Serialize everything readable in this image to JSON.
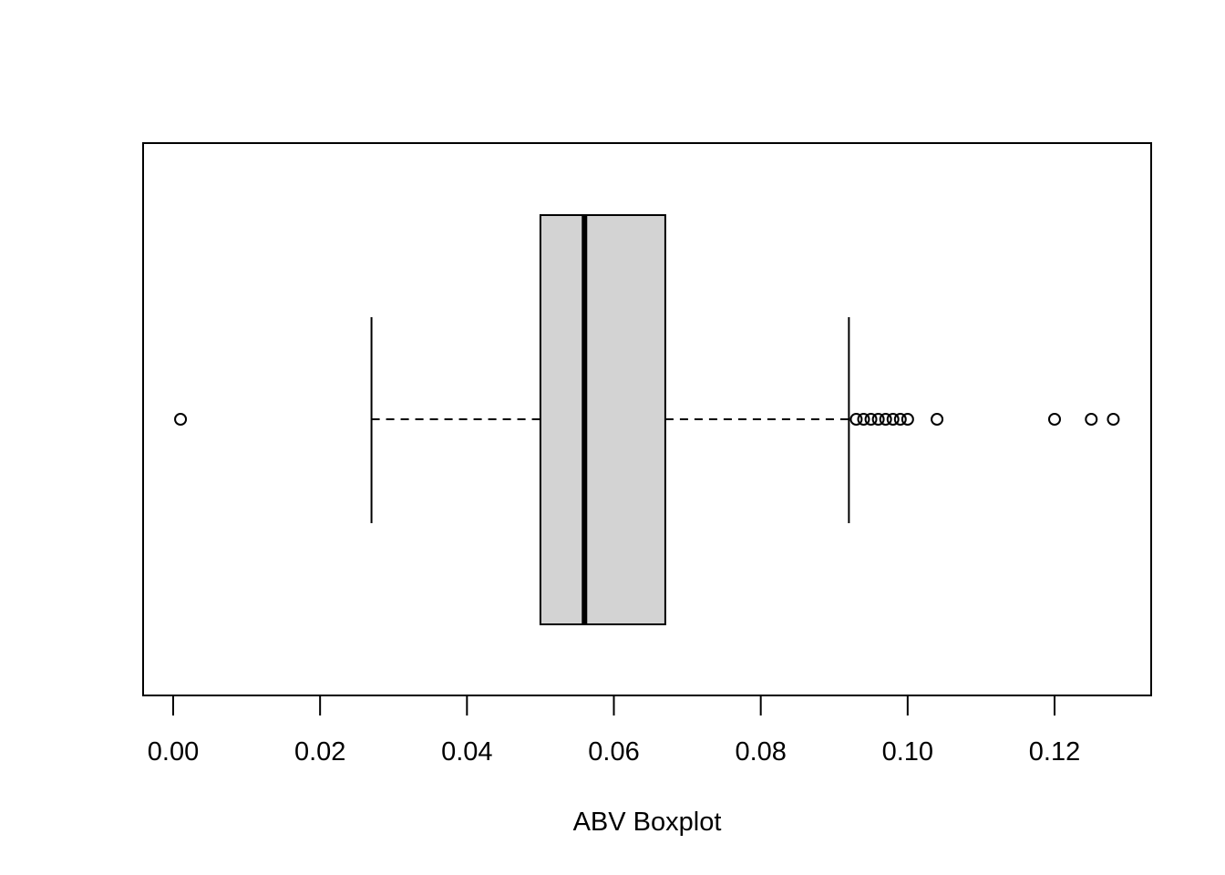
{
  "chart_data": {
    "type": "boxplot",
    "orientation": "horizontal",
    "title": "",
    "xlabel": "ABV Boxplot",
    "ylabel": "",
    "xlim": [
      -0.004,
      0.133
    ],
    "ticks": [
      0.0,
      0.02,
      0.04,
      0.06,
      0.08,
      0.1,
      0.12
    ],
    "tick_labels": [
      "0.00",
      "0.02",
      "0.04",
      "0.06",
      "0.08",
      "0.10",
      "0.12"
    ],
    "box": {
      "whisker_low": 0.027,
      "q1": 0.05,
      "median": 0.056,
      "q3": 0.067,
      "whisker_high": 0.092
    },
    "outliers": [
      0.001,
      0.093,
      0.094,
      0.095,
      0.096,
      0.097,
      0.098,
      0.099,
      0.1,
      0.104,
      0.12,
      0.125,
      0.128
    ],
    "box_fill": "#d3d3d3",
    "grid": false
  }
}
